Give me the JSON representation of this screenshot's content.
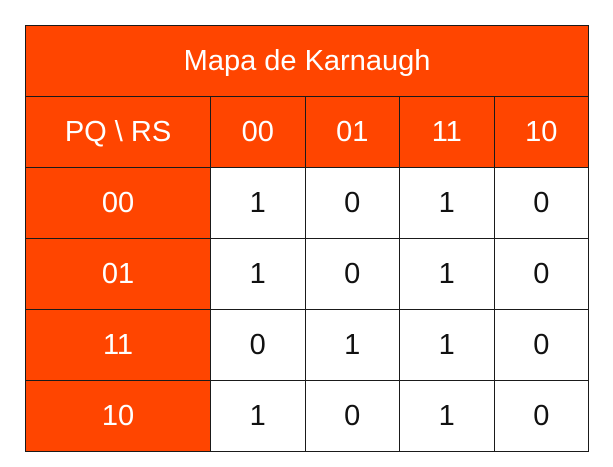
{
  "title": "Mapa de Karnaugh",
  "corner": "PQ \\ RS",
  "col_headers": [
    "00",
    "01",
    "11",
    "10"
  ],
  "rows": [
    {
      "label": "00",
      "values": [
        "1",
        "0",
        "1",
        "0"
      ]
    },
    {
      "label": "01",
      "values": [
        "1",
        "0",
        "1",
        "0"
      ]
    },
    {
      "label": "11",
      "values": [
        "0",
        "1",
        "1",
        "0"
      ]
    },
    {
      "label": "10",
      "values": [
        "1",
        "0",
        "1",
        "0"
      ]
    }
  ],
  "colors": {
    "header_bg": "#ff4500",
    "header_text": "#ffffff",
    "cell_bg": "#ffffff",
    "border": "#1a1a1a"
  }
}
